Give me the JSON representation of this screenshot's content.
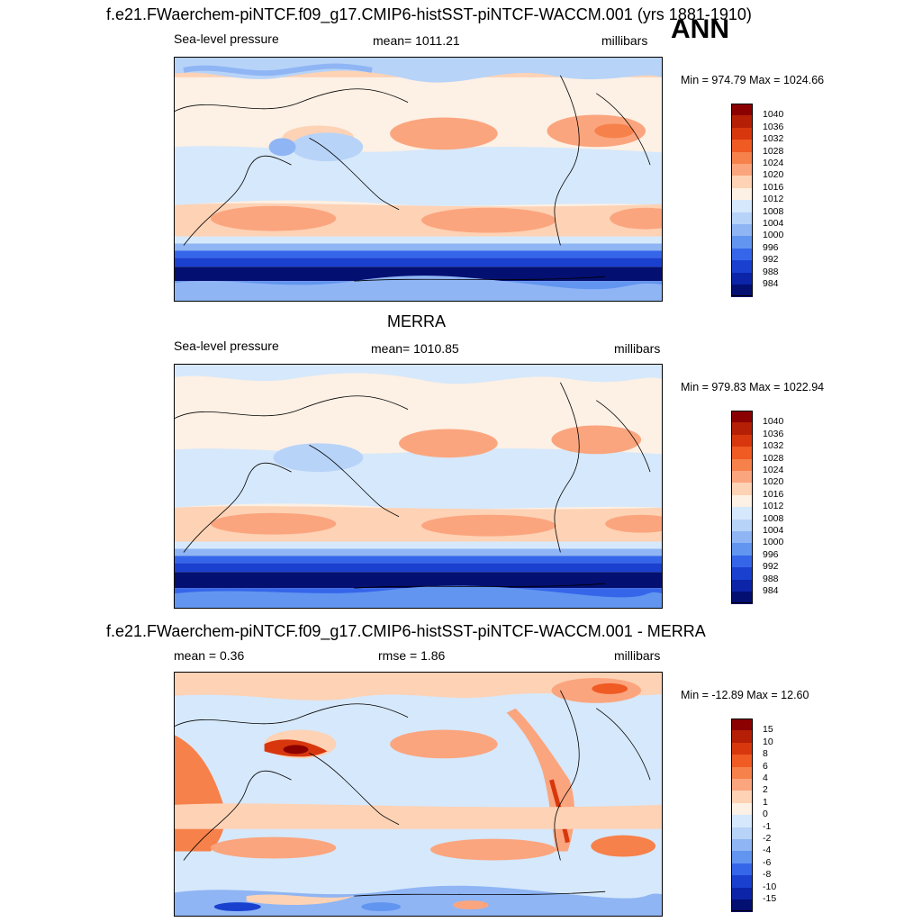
{
  "figure": {
    "title": "f.e21.FWaerchem-piNTCF.f09_g17.CMIP6-histSST-piNTCF-WACCM.001 (yrs 1881-1910)",
    "season": "ANN"
  },
  "panels": [
    {
      "id": "model",
      "left_label": "Sea-level pressure",
      "center_label": "mean= 1011.21",
      "units": "millibars",
      "minmax": "Min = 974.79 Max = 1024.66",
      "colorbar": {
        "labels": [
          "1040",
          "1036",
          "1032",
          "1028",
          "1024",
          "1020",
          "1016",
          "1012",
          "1008",
          "1004",
          "1000",
          "996",
          "992",
          "988",
          "984"
        ],
        "colors": [
          "#8b0000",
          "#b51f05",
          "#d8370d",
          "#f05a23",
          "#f7814a",
          "#fba57e",
          "#fdd2b5",
          "#fdf0e4",
          "#d6e8fb",
          "#b7d3f8",
          "#8fb5f4",
          "#6295f0",
          "#3566ea",
          "#1a40d0",
          "#0b24a8",
          "#040f72"
        ]
      }
    },
    {
      "id": "obs",
      "title": "MERRA",
      "left_label": "Sea-level pressure",
      "center_label": "mean= 1010.85",
      "units": "millibars",
      "minmax": "Min = 979.83 Max = 1022.94",
      "colorbar": {
        "labels": [
          "1040",
          "1036",
          "1032",
          "1028",
          "1024",
          "1020",
          "1016",
          "1012",
          "1008",
          "1004",
          "1000",
          "996",
          "992",
          "988",
          "984"
        ],
        "colors": [
          "#8b0000",
          "#b51f05",
          "#d8370d",
          "#f05a23",
          "#f7814a",
          "#fba57e",
          "#fdd2b5",
          "#fdf0e4",
          "#d6e8fb",
          "#b7d3f8",
          "#8fb5f4",
          "#6295f0",
          "#3566ea",
          "#1a40d0",
          "#0b24a8",
          "#040f72"
        ]
      }
    },
    {
      "id": "diff",
      "title": "f.e21.FWaerchem-piNTCF.f09_g17.CMIP6-histSST-piNTCF-WACCM.001 - MERRA",
      "left_label": "mean =   0.36",
      "center_label": "rmse =   1.86",
      "units": "millibars",
      "minmax": "Min = -12.89 Max =  12.60",
      "colorbar": {
        "labels": [
          "15",
          "10",
          "8",
          "6",
          "4",
          "2",
          "1",
          "0",
          "-1",
          "-2",
          "-4",
          "-6",
          "-8",
          "-10",
          "-15"
        ],
        "colors": [
          "#8b0000",
          "#b51f05",
          "#d8370d",
          "#f05a23",
          "#f7814a",
          "#fba57e",
          "#fdd2b5",
          "#fdf0e4",
          "#d6e8fb",
          "#b7d3f8",
          "#8fb5f4",
          "#6295f0",
          "#3566ea",
          "#1a40d0",
          "#0b24a8",
          "#040f72"
        ]
      }
    }
  ],
  "style": {
    "land_outline": "#000000",
    "frame": "#000000"
  }
}
